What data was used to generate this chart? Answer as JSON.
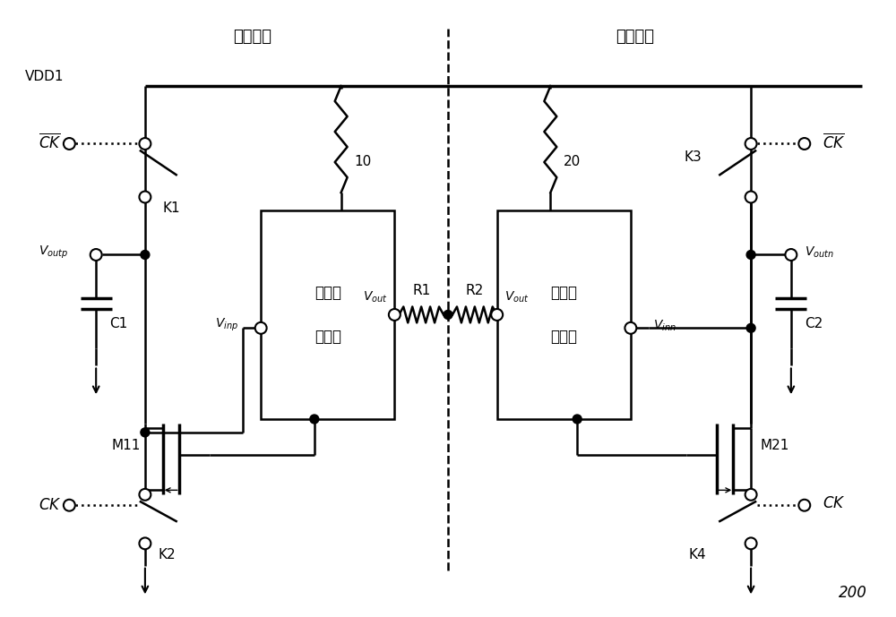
{
  "bg_color": "#ffffff",
  "line_color": "#000000",
  "figsize": [
    10.0,
    6.89
  ],
  "dpi": 100,
  "title1": "第一部分",
  "title2": "第二部分",
  "vdd_label": "VDD1",
  "label_200": "200",
  "box1_label1": "超源极",
  "box1_label2": "跟随器",
  "box2_label1": "超源极",
  "box2_label2": "跟随器",
  "box1_num": "10",
  "box2_num": "20",
  "r1_label": "R1",
  "r2_label": "R2",
  "k1_label": "K1",
  "k2_label": "K2",
  "k3_label": "K3",
  "k4_label": "K4",
  "m11_label": "M11",
  "m21_label": "M21",
  "c1_label": "C1",
  "c2_label": "C2",
  "lw": 1.8,
  "lw_thick": 2.5
}
